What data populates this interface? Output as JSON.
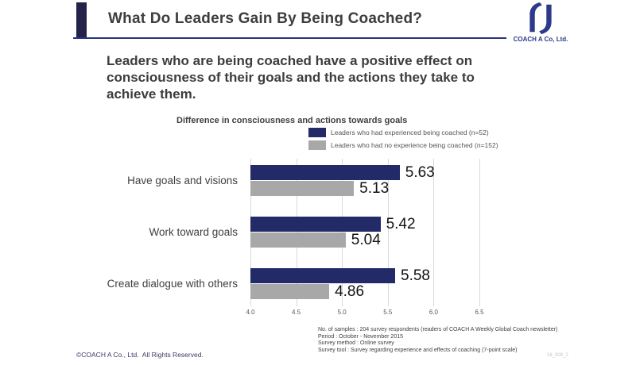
{
  "header": {
    "title": "What Do Leaders Gain By Being Coached?",
    "logo": {
      "company": "COACH A Co, Ltd.",
      "mark": "coach-a-monogram"
    }
  },
  "lead": {
    "text": "Leaders who are being coached have a positive effect on consciousness of their goals and the actions they take to achieve them."
  },
  "chart_data": {
    "type": "bar",
    "orientation": "horizontal",
    "title": "Difference in consciousness and actions towards goals",
    "categories": [
      "Have goals and visions",
      "Work toward goals",
      "Create dialogue with others"
    ],
    "series": [
      {
        "name": "Leaders who had experienced being coached (n=52)",
        "color": "#232a68",
        "values": [
          5.63,
          5.42,
          5.58
        ]
      },
      {
        "name": "Leaders who had no experience being coached (n=152)",
        "color": "#a8a8a8",
        "values": [
          5.13,
          5.04,
          4.86
        ]
      }
    ],
    "xlim": [
      4.0,
      6.5
    ],
    "xticks": [
      "4.0",
      "4.5",
      "5.0",
      "5.5",
      "6.0",
      "6.5"
    ],
    "grid": true,
    "legend_position": "top-right",
    "value_labels": true,
    "xlabel": "",
    "ylabel": ""
  },
  "footnotes": [
    "No. of samples : 204 survey respondents (readers of COACH A Weekly Global Coach newsletter)",
    "Period : October - November 2015",
    "Survey method : Online survey",
    "Survey tool : Survey regarding experience and effects of coaching (7-point scale)"
  ],
  "footer": {
    "copyright": "©COACH A Co., Ltd.  All Rights Reserved.",
    "doc_number": "16_009_2"
  },
  "colors": {
    "navy": "#232a68",
    "gray": "#a8a8a8",
    "header_accent": "#23234a",
    "header_line": "#2b3480",
    "logo_navy": "#2d3a8c",
    "gridline": "#d9d9d9"
  }
}
